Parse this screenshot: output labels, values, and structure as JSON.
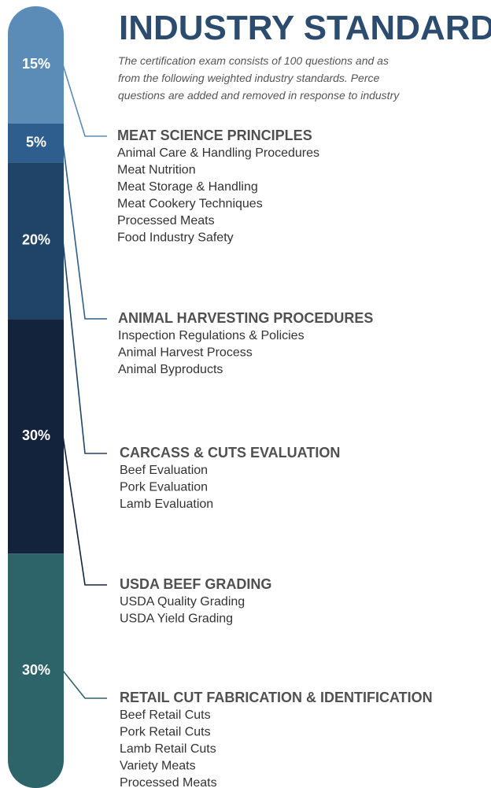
{
  "title": "INDUSTRY STANDARDS",
  "intro": [
    "The certification exam consists of 100 questions and as",
    "from the following weighted industry standards. Perce",
    "questions are added and removed in response to industry"
  ],
  "segments": [
    {
      "value": 15,
      "value_label": "15%",
      "color": "#5b8cb8",
      "heading": "MEAT SCIENCE PRINCIPLES",
      "items": [
        "Animal Care & Handling Procedures",
        "Meat Nutrition",
        "Meat Storage & Handling",
        "Meat Cookery Techniques",
        "Processed Meats",
        "Food Industry Safety"
      ]
    },
    {
      "value": 5,
      "value_label": "5%",
      "color": "#2e5e8e",
      "heading": "ANIMAL HARVESTING PROCEDURES",
      "items": [
        "Inspection Regulations & Policies",
        "Animal Harvest Process",
        "Animal Byproducts"
      ]
    },
    {
      "value": 20,
      "value_label": "20%",
      "color": "#1f4467",
      "heading": "CARCASS & CUTS EVALUATION",
      "items": [
        "Beef Evaluation",
        "Pork Evaluation",
        "Lamb Evaluation"
      ]
    },
    {
      "value": 30,
      "value_label": "30%",
      "color": "#13233b",
      "heading": "USDA BEEF GRADING",
      "items": [
        "USDA Quality Grading",
        "USDA Yield Grading"
      ]
    },
    {
      "value": 30,
      "value_label": "30%",
      "color": "#2c6469",
      "heading": "RETAIL CUT FABRICATION & IDENTIFICATION",
      "items": [
        "Beef Retail Cuts",
        "Pork Retail Cuts",
        "Lamb Retail Cuts",
        "Variety Meats",
        "Processed Meats"
      ]
    }
  ]
}
